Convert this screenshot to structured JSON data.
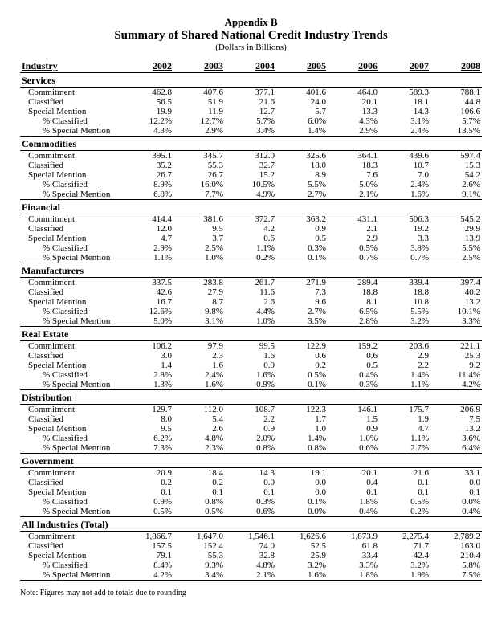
{
  "header": {
    "appendix": "Appendix B",
    "title": "Summary of Shared National Credit Industry Trends",
    "subtitle": "(Dollars in Billions)"
  },
  "columns": {
    "industry": "Industry",
    "years": [
      "2002",
      "2003",
      "2004",
      "2005",
      "2006",
      "2007",
      "2008"
    ]
  },
  "row_labels": {
    "commitment": "Commitment",
    "classified": "Classified",
    "special_mention": "Special Mention",
    "pct_classified": "% Classified",
    "pct_special_mention": "% Special Mention"
  },
  "sections": [
    {
      "name": "Services",
      "rows": {
        "commitment": [
          "462.8",
          "407.6",
          "377.1",
          "401.6",
          "464.0",
          "589.3",
          "788.1"
        ],
        "classified": [
          "56.5",
          "51.9",
          "21.6",
          "24.0",
          "20.1",
          "18.1",
          "44.8"
        ],
        "special_mention": [
          "19.9",
          "11.9",
          "12.7",
          "5.7",
          "13.3",
          "14.3",
          "106.6"
        ],
        "pct_classified": [
          "12.2%",
          "12.7%",
          "5.7%",
          "6.0%",
          "4.3%",
          "3.1%",
          "5.7%"
        ],
        "pct_special_mention": [
          "4.3%",
          "2.9%",
          "3.4%",
          "1.4%",
          "2.9%",
          "2.4%",
          "13.5%"
        ]
      }
    },
    {
      "name": "Commodities",
      "rows": {
        "commitment": [
          "395.1",
          "345.7",
          "312.0",
          "325.6",
          "364.1",
          "439.6",
          "597.4"
        ],
        "classified": [
          "35.2",
          "55.3",
          "32.7",
          "18.0",
          "18.3",
          "10.7",
          "15.3"
        ],
        "special_mention": [
          "26.7",
          "26.7",
          "15.2",
          "8.9",
          "7.6",
          "7.0",
          "54.2"
        ],
        "pct_classified": [
          "8.9%",
          "16.0%",
          "10.5%",
          "5.5%",
          "5.0%",
          "2.4%",
          "2.6%"
        ],
        "pct_special_mention": [
          "6.8%",
          "7.7%",
          "4.9%",
          "2.7%",
          "2.1%",
          "1.6%",
          "9.1%"
        ]
      }
    },
    {
      "name": "Financial",
      "rows": {
        "commitment": [
          "414.4",
          "381.6",
          "372.7",
          "363.2",
          "431.1",
          "506.3",
          "545.2"
        ],
        "classified": [
          "12.0",
          "9.5",
          "4.2",
          "0.9",
          "2.1",
          "19.2",
          "29.9"
        ],
        "special_mention": [
          "4.7",
          "3.7",
          "0.6",
          "0.5",
          "2.9",
          "3.3",
          "13.9"
        ],
        "pct_classified": [
          "2.9%",
          "2.5%",
          "1.1%",
          "0.3%",
          "0.5%",
          "3.8%",
          "5.5%"
        ],
        "pct_special_mention": [
          "1.1%",
          "1.0%",
          "0.2%",
          "0.1%",
          "0.7%",
          "0.7%",
          "2.5%"
        ]
      }
    },
    {
      "name": "Manufacturers",
      "rows": {
        "commitment": [
          "337.5",
          "283.8",
          "261.7",
          "271.9",
          "289.4",
          "339.4",
          "397.4"
        ],
        "classified": [
          "42.6",
          "27.9",
          "11.6",
          "7.3",
          "18.8",
          "18.8",
          "40.2"
        ],
        "special_mention": [
          "16.7",
          "8.7",
          "2.6",
          "9.6",
          "8.1",
          "10.8",
          "13.2"
        ],
        "pct_classified": [
          "12.6%",
          "9.8%",
          "4.4%",
          "2.7%",
          "6.5%",
          "5.5%",
          "10.1%"
        ],
        "pct_special_mention": [
          "5.0%",
          "3.1%",
          "1.0%",
          "3.5%",
          "2.8%",
          "3.2%",
          "3.3%"
        ]
      }
    },
    {
      "name": "Real Estate",
      "rows": {
        "commitment": [
          "106.2",
          "97.9",
          "99.5",
          "122.9",
          "159.2",
          "203.6",
          "221.1"
        ],
        "classified": [
          "3.0",
          "2.3",
          "1.6",
          "0.6",
          "0.6",
          "2.9",
          "25.3"
        ],
        "special_mention": [
          "1.4",
          "1.6",
          "0.9",
          "0.2",
          "0.5",
          "2.2",
          "9.2"
        ],
        "pct_classified": [
          "2.8%",
          "2.4%",
          "1.6%",
          "0.5%",
          "0.4%",
          "1.4%",
          "11.4%"
        ],
        "pct_special_mention": [
          "1.3%",
          "1.6%",
          "0.9%",
          "0.1%",
          "0.3%",
          "1.1%",
          "4.2%"
        ]
      }
    },
    {
      "name": "Distribution",
      "rows": {
        "commitment": [
          "129.7",
          "112.0",
          "108.7",
          "122.3",
          "146.1",
          "175.7",
          "206.9"
        ],
        "classified": [
          "8.0",
          "5.4",
          "2.2",
          "1.7",
          "1.5",
          "1.9",
          "7.5"
        ],
        "special_mention": [
          "9.5",
          "2.6",
          "0.9",
          "1.0",
          "0.9",
          "4.7",
          "13.2"
        ],
        "pct_classified": [
          "6.2%",
          "4.8%",
          "2.0%",
          "1.4%",
          "1.0%",
          "1.1%",
          "3.6%"
        ],
        "pct_special_mention": [
          "7.3%",
          "2.3%",
          "0.8%",
          "0.8%",
          "0.6%",
          "2.7%",
          "6.4%"
        ]
      }
    },
    {
      "name": "Government",
      "rows": {
        "commitment": [
          "20.9",
          "18.4",
          "14.3",
          "19.1",
          "20.1",
          "21.6",
          "33.1"
        ],
        "classified": [
          "0.2",
          "0.2",
          "0.0",
          "0.0",
          "0.4",
          "0.1",
          "0.0"
        ],
        "special_mention": [
          "0.1",
          "0.1",
          "0.1",
          "0.0",
          "0.1",
          "0.1",
          "0.1"
        ],
        "pct_classified": [
          "0.9%",
          "0.8%",
          "0.3%",
          "0.1%",
          "1.8%",
          "0.5%",
          "0.0%"
        ],
        "pct_special_mention": [
          "0.5%",
          "0.5%",
          "0.6%",
          "0.0%",
          "0.4%",
          "0.2%",
          "0.4%"
        ]
      }
    },
    {
      "name": "All Industries (Total)",
      "rows": {
        "commitment": [
          "1,866.7",
          "1,647.0",
          "1,546.1",
          "1,626.6",
          "1,873.9",
          "2,275.4",
          "2,789.2"
        ],
        "classified": [
          "157.5",
          "152.4",
          "74.0",
          "52.5",
          "61.8",
          "71.7",
          "163.0"
        ],
        "special_mention": [
          "79.1",
          "55.3",
          "32.8",
          "25.9",
          "33.4",
          "42.4",
          "210.4"
        ],
        "pct_classified": [
          "8.4%",
          "9.3%",
          "4.8%",
          "3.2%",
          "3.3%",
          "3.2%",
          "5.8%"
        ],
        "pct_special_mention": [
          "4.2%",
          "3.4%",
          "2.1%",
          "1.6%",
          "1.8%",
          "1.9%",
          "7.5%"
        ]
      }
    }
  ],
  "footnote": "Note: Figures may not add to totals due to rounding"
}
